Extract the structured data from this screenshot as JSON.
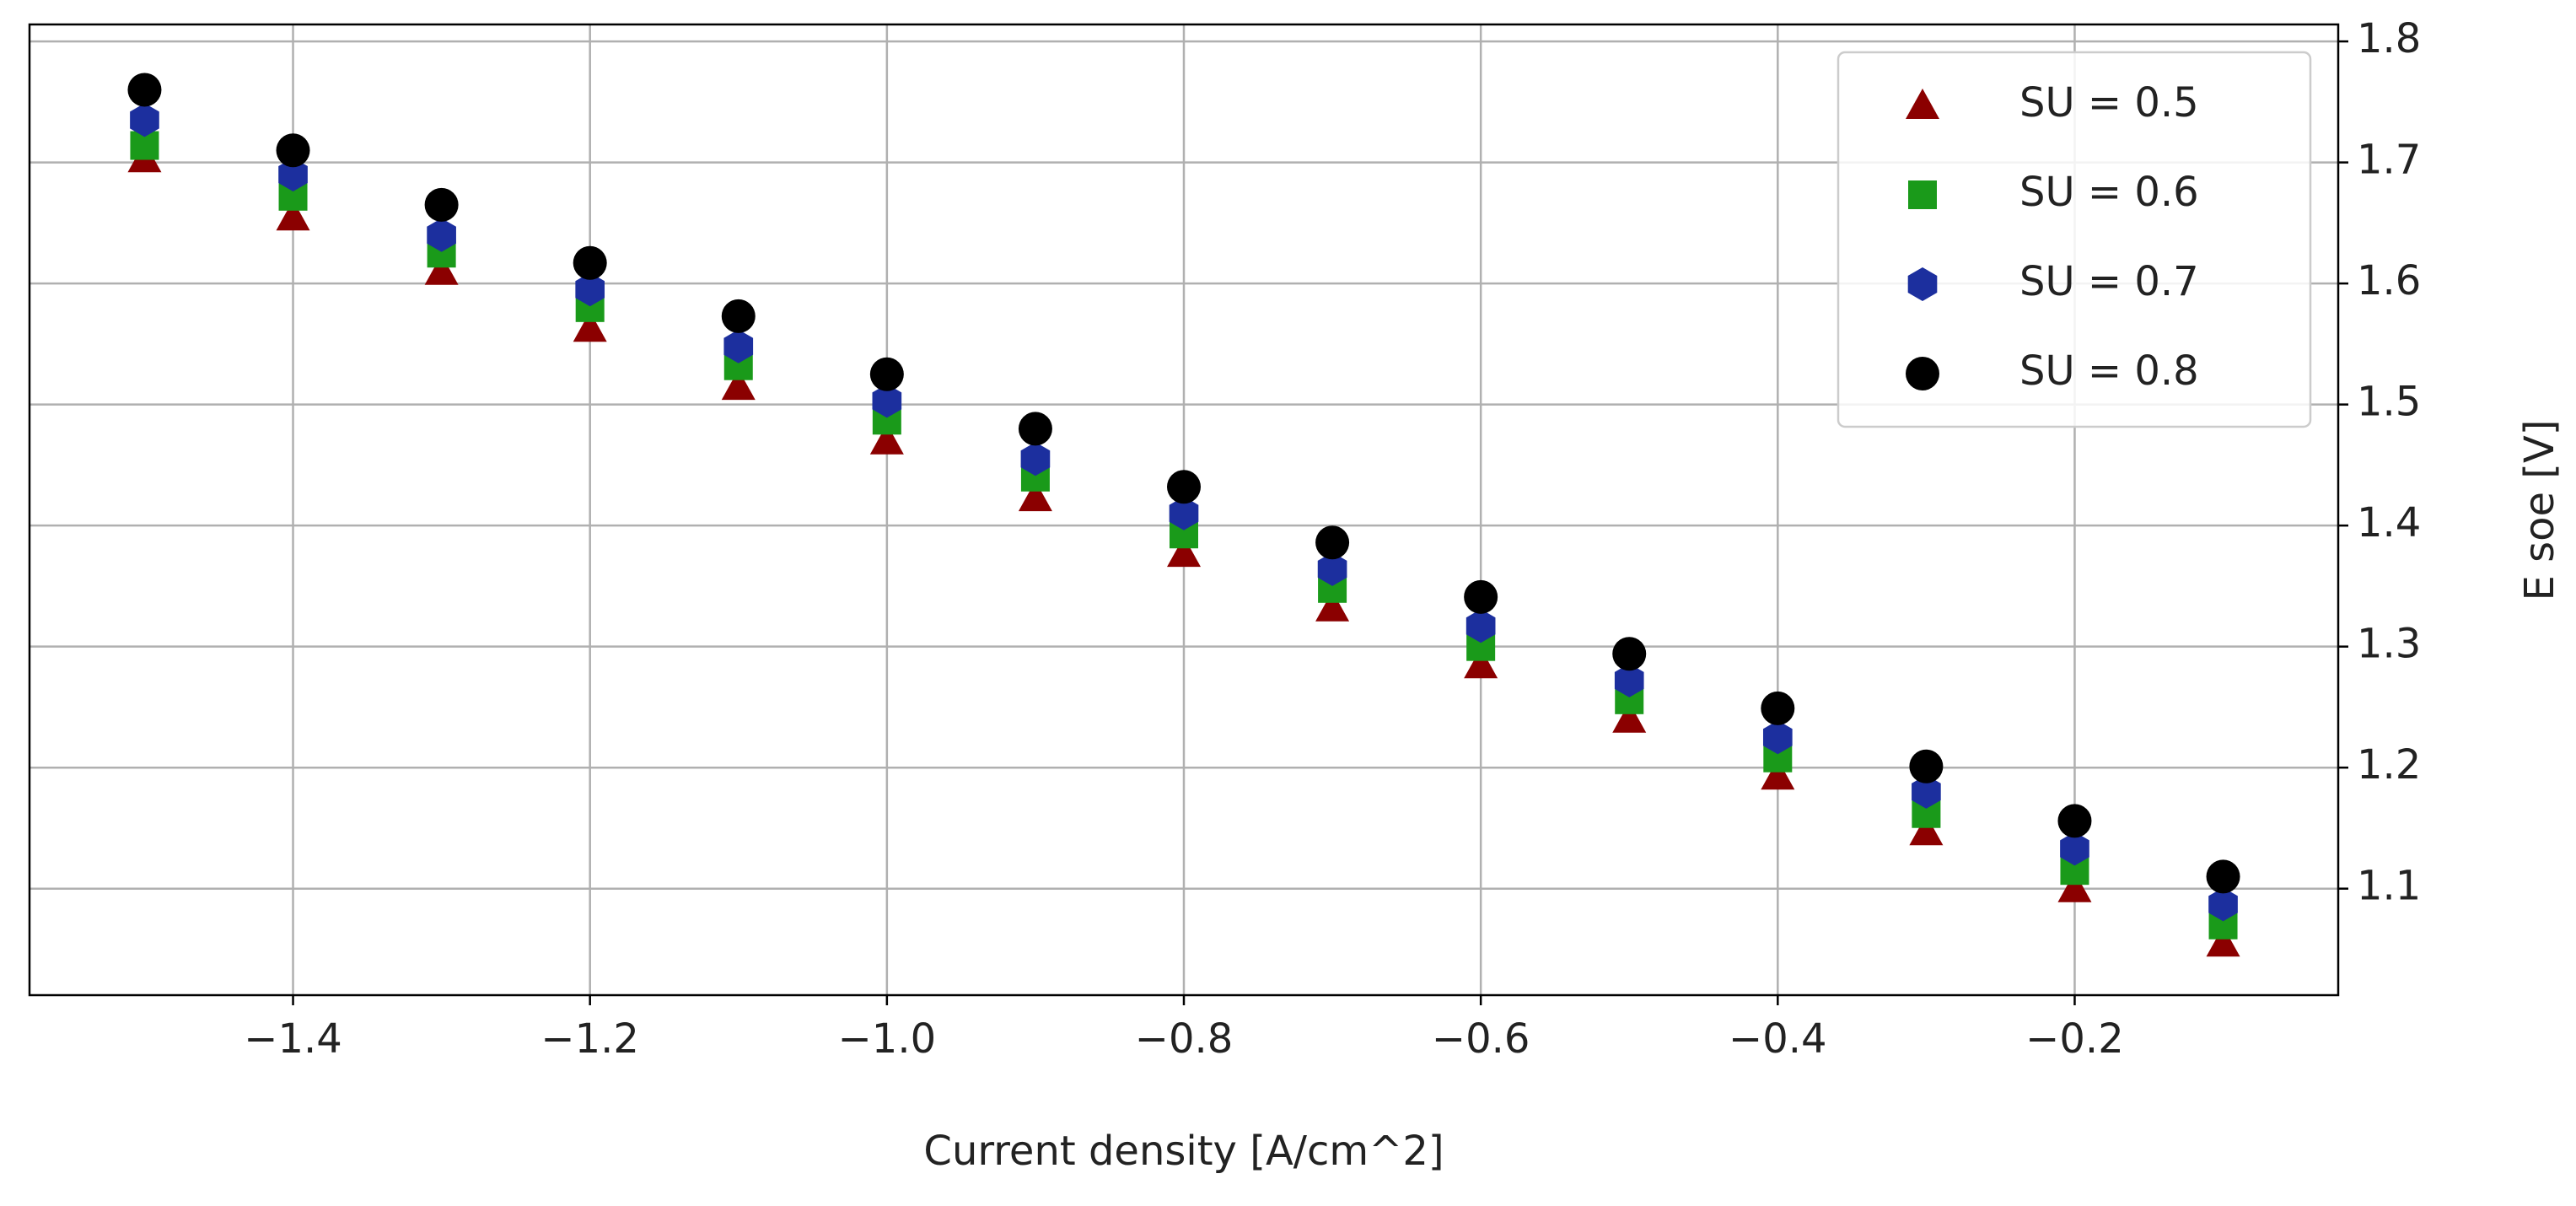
{
  "chart_data": {
    "type": "scatter",
    "x_label": "Current density [A/cm^2]",
    "y_label": "E soe [V]",
    "x": [
      -1.5,
      -1.4,
      -1.3,
      -1.2,
      -1.1,
      -1.0,
      -0.9,
      -0.8,
      -0.7,
      -0.6,
      -0.5,
      -0.4,
      -0.3,
      -0.2,
      -0.1
    ],
    "series": [
      {
        "name": "SU = 0.5",
        "color": "#8b0000",
        "marker": "triangle",
        "values": [
          1.703,
          1.655,
          1.61,
          1.563,
          1.515,
          1.47,
          1.423,
          1.377,
          1.332,
          1.285,
          1.24,
          1.193,
          1.147,
          1.1,
          1.055
        ]
      },
      {
        "name": "SU = 0.6",
        "color": "#1a9a1a",
        "marker": "square",
        "values": [
          1.714,
          1.672,
          1.625,
          1.58,
          1.532,
          1.487,
          1.44,
          1.393,
          1.348,
          1.3,
          1.256,
          1.208,
          1.162,
          1.115,
          1.07
        ]
      },
      {
        "name": "SU = 0.7",
        "color": "#1c2f9e",
        "marker": "hexagon",
        "values": [
          1.735,
          1.69,
          1.64,
          1.595,
          1.548,
          1.503,
          1.455,
          1.41,
          1.364,
          1.317,
          1.272,
          1.225,
          1.18,
          1.133,
          1.087
        ]
      },
      {
        "name": "SU = 0.8",
        "color": "#000000",
        "marker": "circle",
        "values": [
          1.76,
          1.71,
          1.665,
          1.617,
          1.573,
          1.525,
          1.48,
          1.432,
          1.386,
          1.341,
          1.294,
          1.249,
          1.201,
          1.156,
          1.11
        ]
      }
    ],
    "xlim": [
      -1.5775,
      -0.0225
    ],
    "ylim": [
      1.012,
      1.814
    ],
    "xticks": [
      {
        "value": -1.4,
        "label": "−1.4"
      },
      {
        "value": -1.2,
        "label": "−1.2"
      },
      {
        "value": -1.0,
        "label": "−1.0"
      },
      {
        "value": -0.8,
        "label": "−0.8"
      },
      {
        "value": -0.6,
        "label": "−0.6"
      },
      {
        "value": -0.4,
        "label": "−0.4"
      },
      {
        "value": -0.2,
        "label": "−0.2"
      }
    ],
    "yticks": [
      1.1,
      1.2,
      1.3,
      1.4,
      1.5,
      1.6,
      1.7,
      1.8
    ],
    "grid": true,
    "y_axis_side": "right",
    "legend": "upper right"
  }
}
